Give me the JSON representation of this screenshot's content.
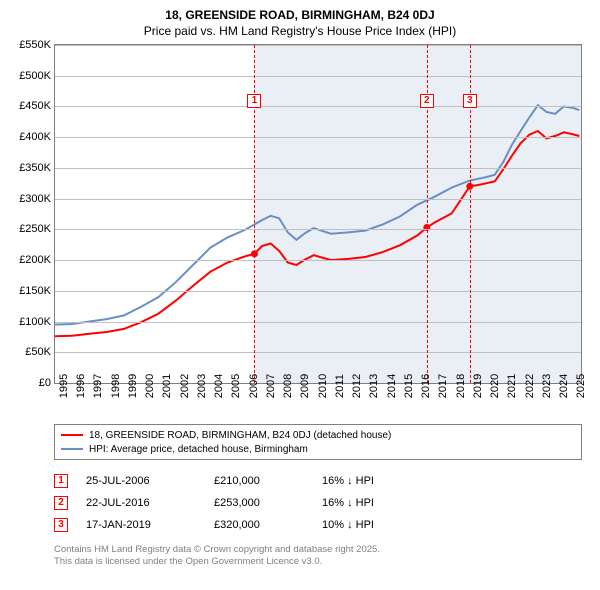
{
  "title": "18, GREENSIDE ROAD, BIRMINGHAM, B24 0DJ",
  "subtitle": "Price paid vs. HM Land Registry's House Price Index (HPI)",
  "chart": {
    "type": "line",
    "background_color": "#ffffff",
    "grid_color": "#c0c0c0",
    "axis_color": "#808080",
    "label_fontsize": 11,
    "title_fontsize": 12,
    "ylim": [
      0,
      550
    ],
    "ytick_step": 50,
    "ytick_labels": [
      "£0",
      "£50K",
      "£100K",
      "£150K",
      "£200K",
      "£250K",
      "£300K",
      "£350K",
      "£400K",
      "£450K",
      "£500K",
      "£550K"
    ],
    "xlim": [
      1995,
      2025.5
    ],
    "xtick_step": 1,
    "xtick_labels": [
      "1995",
      "1996",
      "1997",
      "1998",
      "1999",
      "2000",
      "2001",
      "2002",
      "2003",
      "2004",
      "2005",
      "2006",
      "2007",
      "2008",
      "2009",
      "2010",
      "2011",
      "2012",
      "2013",
      "2014",
      "2015",
      "2016",
      "2017",
      "2018",
      "2019",
      "2020",
      "2021",
      "2022",
      "2023",
      "2024",
      "2025"
    ],
    "shaded_region": {
      "x_start": 2006.56,
      "x_end": 2025.5,
      "color": "#eaeff5"
    },
    "markers": [
      {
        "n": "1",
        "x": 2006.56,
        "label_y": 470,
        "color": "#ff0000"
      },
      {
        "n": "2",
        "x": 2016.56,
        "label_y": 470,
        "color": "#ff0000"
      },
      {
        "n": "3",
        "x": 2019.05,
        "label_y": 470,
        "color": "#ff0000"
      }
    ],
    "series": [
      {
        "name": "18, GREENSIDE ROAD, BIRMINGHAM, B24 0DJ (detached house)",
        "color": "#ff0000",
        "line_width": 2,
        "points": [
          [
            1995,
            76
          ],
          [
            1996,
            77
          ],
          [
            1997,
            80
          ],
          [
            1998,
            83
          ],
          [
            1999,
            88
          ],
          [
            2000,
            99
          ],
          [
            2001,
            113
          ],
          [
            2002,
            134
          ],
          [
            2003,
            158
          ],
          [
            2004,
            181
          ],
          [
            2005,
            196
          ],
          [
            2006,
            206
          ],
          [
            2006.56,
            210
          ],
          [
            2007,
            223
          ],
          [
            2007.5,
            227
          ],
          [
            2008,
            215
          ],
          [
            2008.5,
            196
          ],
          [
            2009,
            192
          ],
          [
            2009.5,
            201
          ],
          [
            2010,
            208
          ],
          [
            2011,
            200
          ],
          [
            2012,
            202
          ],
          [
            2013,
            205
          ],
          [
            2014,
            213
          ],
          [
            2015,
            224
          ],
          [
            2016,
            240
          ],
          [
            2016.56,
            253
          ],
          [
            2017,
            261
          ],
          [
            2018,
            276
          ],
          [
            2019.05,
            320
          ],
          [
            2019.5,
            322
          ],
          [
            2020,
            325
          ],
          [
            2020.5,
            328
          ],
          [
            2021,
            348
          ],
          [
            2021.5,
            370
          ],
          [
            2022,
            390
          ],
          [
            2022.5,
            404
          ],
          [
            2023,
            410
          ],
          [
            2023.5,
            398
          ],
          [
            2024,
            402
          ],
          [
            2024.5,
            408
          ],
          [
            2025,
            405
          ],
          [
            2025.4,
            402
          ]
        ],
        "sale_points": [
          {
            "x": 2006.56,
            "y": 210
          },
          {
            "x": 2016.56,
            "y": 253
          },
          {
            "x": 2019.05,
            "y": 320
          }
        ]
      },
      {
        "name": "HPI: Average price, detached house, Birmingham",
        "color": "#6a8fc5",
        "line_width": 2,
        "points": [
          [
            1995,
            95
          ],
          [
            1996,
            96
          ],
          [
            1997,
            100
          ],
          [
            1998,
            104
          ],
          [
            1999,
            110
          ],
          [
            2000,
            124
          ],
          [
            2001,
            140
          ],
          [
            2002,
            164
          ],
          [
            2003,
            192
          ],
          [
            2004,
            220
          ],
          [
            2005,
            237
          ],
          [
            2006,
            249
          ],
          [
            2007,
            265
          ],
          [
            2007.5,
            272
          ],
          [
            2008,
            268
          ],
          [
            2008.5,
            245
          ],
          [
            2009,
            233
          ],
          [
            2009.5,
            244
          ],
          [
            2010,
            252
          ],
          [
            2011,
            243
          ],
          [
            2012,
            245
          ],
          [
            2013,
            248
          ],
          [
            2014,
            258
          ],
          [
            2015,
            271
          ],
          [
            2016,
            290
          ],
          [
            2017,
            303
          ],
          [
            2018,
            318
          ],
          [
            2019,
            329
          ],
          [
            2020,
            335
          ],
          [
            2020.5,
            339
          ],
          [
            2021,
            360
          ],
          [
            2021.5,
            388
          ],
          [
            2022,
            410
          ],
          [
            2022.5,
            432
          ],
          [
            2023,
            452
          ],
          [
            2023.5,
            441
          ],
          [
            2024,
            438
          ],
          [
            2024.5,
            450
          ],
          [
            2025,
            448
          ],
          [
            2025.4,
            444
          ]
        ]
      }
    ]
  },
  "legend": {
    "items": [
      {
        "color": "#ff0000",
        "label": "18, GREENSIDE ROAD, BIRMINGHAM, B24 0DJ (detached house)"
      },
      {
        "color": "#6a8fc5",
        "label": "HPI: Average price, detached house, Birmingham"
      }
    ]
  },
  "sales": [
    {
      "n": "1",
      "date": "25-JUL-2006",
      "price": "£210,000",
      "hpi_delta": "16% ↓ HPI",
      "color": "#ff0000"
    },
    {
      "n": "2",
      "date": "22-JUL-2016",
      "price": "£253,000",
      "hpi_delta": "16% ↓ HPI",
      "color": "#ff0000"
    },
    {
      "n": "3",
      "date": "17-JAN-2019",
      "price": "£320,000",
      "hpi_delta": "10% ↓ HPI",
      "color": "#ff0000"
    }
  ],
  "footer_line1": "Contains HM Land Registry data © Crown copyright and database right 2025.",
  "footer_line2": "This data is licensed under the Open Government Licence v3.0."
}
